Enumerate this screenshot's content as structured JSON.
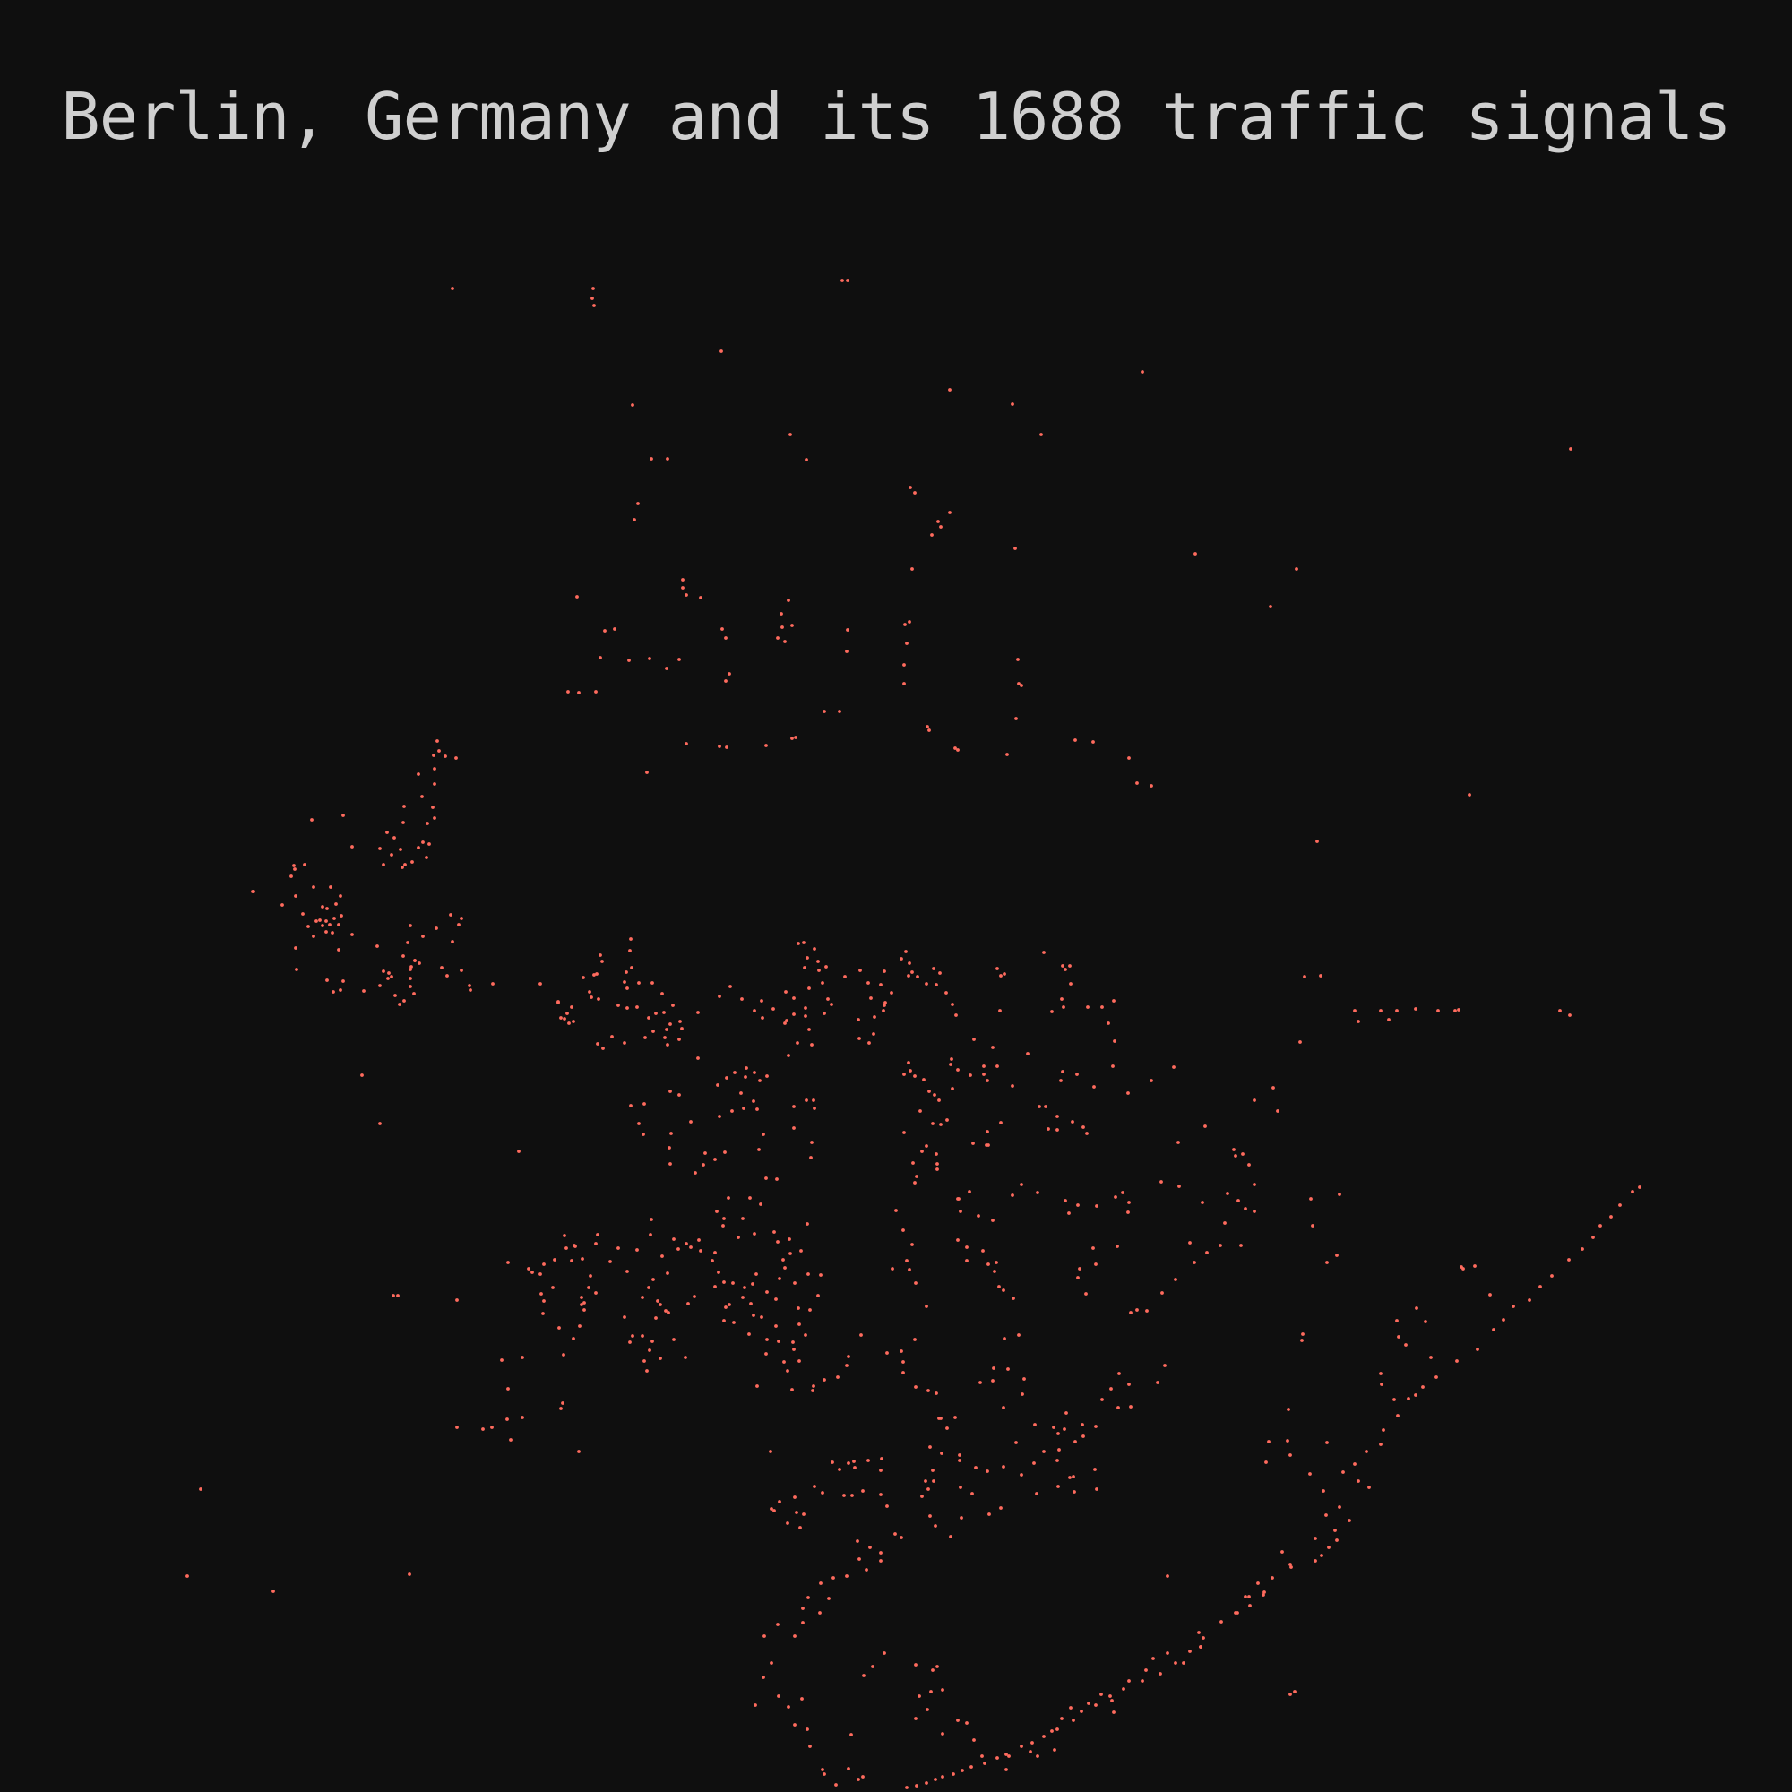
{
  "title": "Berlin, Germany and its 1688 traffic signals",
  "colors": {
    "background": "#0f0f0f",
    "title": "#cfcfcf",
    "signal": "#ff6b5e"
  }
}
